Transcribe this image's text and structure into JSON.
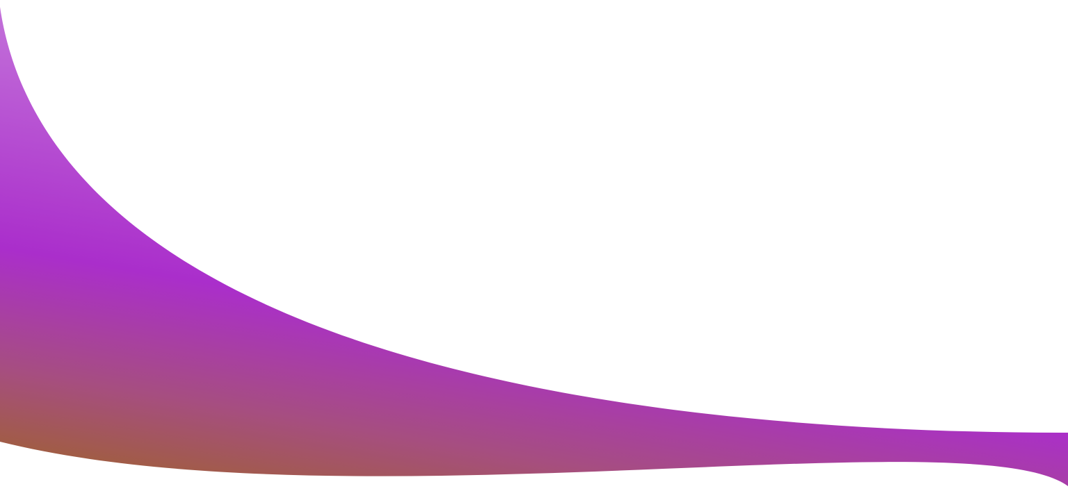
{
  "background": {
    "shape": "decorative-wave",
    "colors": {
      "top": "#c77ddc",
      "middle": "#aa2ecb",
      "lower": "#a64e80",
      "bottom": "#9f6132"
    }
  }
}
